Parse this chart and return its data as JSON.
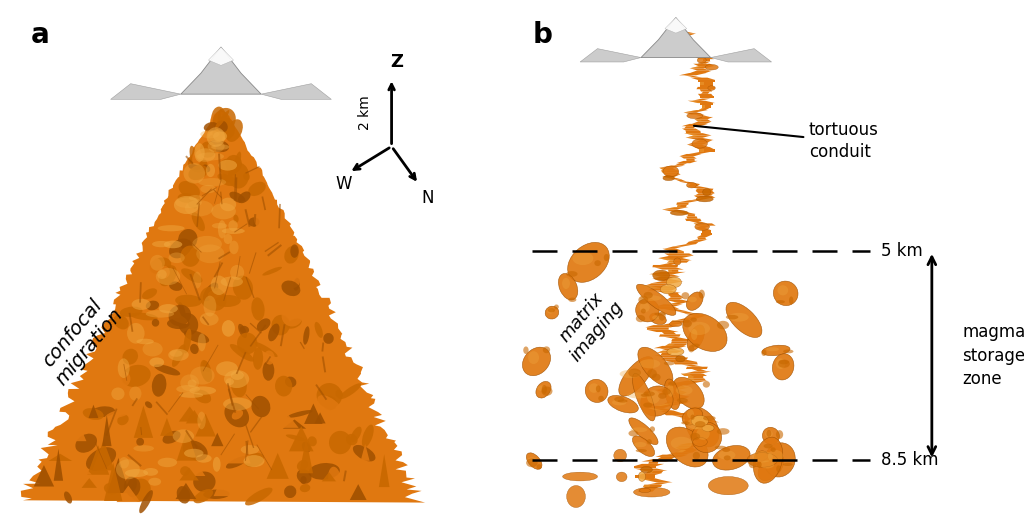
{
  "bg_color": "#ffffff",
  "label_a": "a",
  "label_b": "b",
  "label_fontsize": 20,
  "label_fontweight": "bold",
  "confocal_text": "confocal\nmigration",
  "matrix_imaging_text": "matrix\nimaging",
  "tortuous_conduit_text": "tortuous\nconduit",
  "magma_storage_text": "magma\nstorage\nzone",
  "depth_5km": "5 km",
  "depth_85km": "8.5 km",
  "z_label": "Z",
  "w_label": "W",
  "n_label": "N",
  "scale_label": "2 km",
  "orange_color": "#E07810",
  "orange_dark": "#A05000",
  "orange_light": "#F0A840",
  "orange_mid": "#C86800"
}
